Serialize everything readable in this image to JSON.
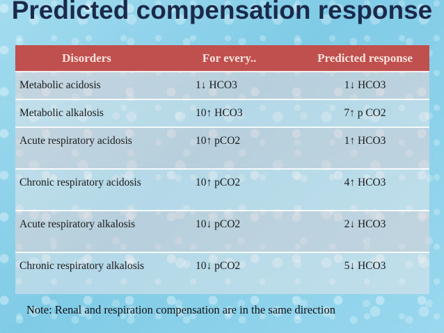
{
  "slide": {
    "title": "Predicted compensation response",
    "note": "Note: Renal and respiration compensation are in the same direction"
  },
  "table": {
    "headers": [
      "Disorders",
      "For every..",
      "Predicted response"
    ],
    "rows": [
      {
        "disorder": "Metabolic acidosis",
        "for_every": "1↓  HCO3",
        "response": "1↓  HCO3"
      },
      {
        "disorder": "Metabolic alkalosis",
        "for_every": "10↑ HCO3",
        "response": "7↑ p CO2"
      },
      {
        "disorder": "Acute respiratory acidosis",
        "for_every": "10↑ pCO2",
        "response": "1↑ HCO3"
      },
      {
        "disorder": "Chronic respiratory acidosis",
        "for_every": "10↑ pCO2",
        "response": "4↑ HCO3"
      },
      {
        "disorder": "Acute respiratory alkalosis",
        "for_every": "10↓ pCO2",
        "response": "2↓ HCO3"
      },
      {
        "disorder": "Chronic respiratory alkalosis",
        "for_every": "10↓ pCO2",
        "response": "5↓ HCO3"
      }
    ]
  },
  "colors": {
    "header_bg": "#c0504d",
    "background": "#8fd3ea"
  }
}
